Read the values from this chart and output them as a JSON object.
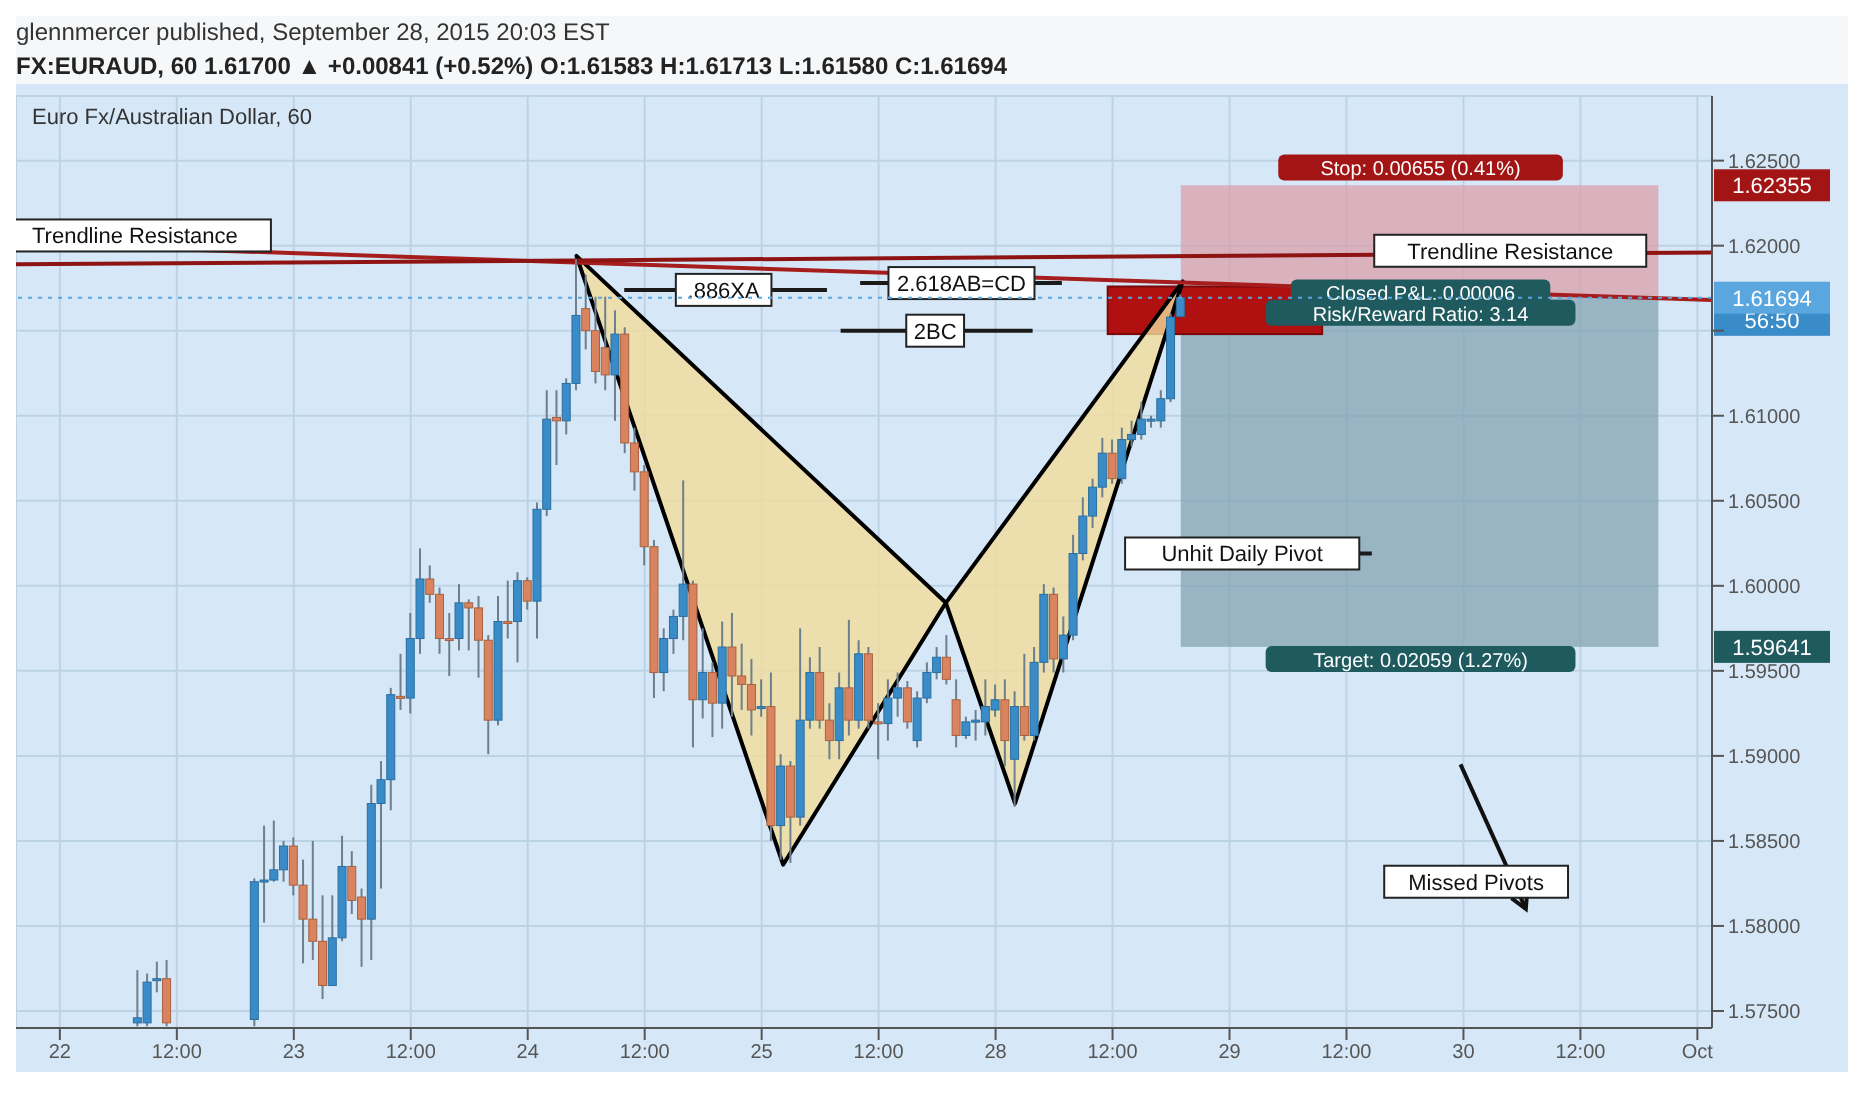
{
  "chart_data": {
    "type": "candlestick",
    "title": "FX:EURAUD, 60 1.61700 ▲ +0.00841 (+0.52%) O:1.61583 H:1.61713 L:1.61580 C:1.61694",
    "subtitle": "Euro Fx/Australian Dollar, 60",
    "categories": [
      null,
      null,
      null,
      null,
      "22",
      null,
      null,
      null,
      null,
      null,
      null,
      null,
      null,
      null,
      null,
      null,
      "12:00",
      null,
      null,
      null,
      null,
      null,
      null,
      null,
      null,
      null,
      null,
      null,
      "23",
      null,
      null,
      null,
      null,
      null,
      null,
      null,
      null,
      null,
      null,
      null,
      "12:00",
      null,
      null,
      null,
      null,
      null,
      null,
      null,
      null,
      null,
      null,
      null,
      "24",
      null,
      null,
      null,
      null,
      null,
      null,
      null,
      null,
      null,
      null,
      null,
      "12:00",
      null,
      null,
      null,
      null,
      null,
      null,
      null,
      null,
      null,
      null,
      null,
      "25",
      null,
      null,
      null,
      null,
      null,
      null,
      null,
      null,
      null,
      null,
      null,
      "12:00",
      null,
      null,
      null,
      null,
      null,
      null,
      null,
      null,
      null,
      null,
      null,
      "28",
      null,
      null,
      null,
      null,
      null,
      null,
      null,
      null,
      null,
      null,
      null,
      "12:00",
      null,
      null,
      null,
      null,
      null,
      null,
      null,
      null,
      null,
      null,
      null,
      "29",
      null,
      null,
      null,
      null,
      null,
      null,
      null,
      null,
      null,
      null,
      null,
      "12:00",
      null,
      null,
      null,
      null,
      null,
      null,
      null,
      null,
      null,
      null,
      null,
      "30",
      null,
      null,
      null,
      null,
      null,
      null,
      null,
      null,
      null,
      null,
      null,
      "12:00",
      null,
      null,
      null,
      null,
      null,
      null,
      null,
      null,
      null,
      null,
      null,
      "Oct",
      null
    ],
    "ohlc": [
      null,
      null,
      null,
      null,
      null,
      null,
      null,
      null,
      null,
      null,
      null,
      null,
      [
        1.5743,
        1.5774,
        1.5741,
        1.5746
      ],
      [
        1.5743,
        1.5772,
        1.5741,
        1.5767
      ],
      [
        1.5768,
        1.5779,
        1.5761,
        1.5769
      ],
      [
        1.5769,
        1.578,
        1.5741,
        1.5743
      ],
      null,
      null,
      null,
      null,
      null,
      null,
      null,
      null,
      [
        1.5745,
        1.5828,
        1.5741,
        1.5826
      ],
      [
        1.5826,
        1.5859,
        1.5802,
        1.5827
      ],
      [
        1.5827,
        1.5862,
        1.5826,
        1.5833
      ],
      [
        1.5833,
        1.585,
        1.5826,
        1.5847
      ],
      [
        1.5847,
        1.5852,
        1.5818,
        1.5824
      ],
      [
        1.5824,
        1.5839,
        1.5778,
        1.5804
      ],
      [
        1.5804,
        1.585,
        1.578,
        1.5791
      ],
      [
        1.5791,
        1.5818,
        1.5757,
        1.5765
      ],
      [
        1.5765,
        1.5818,
        1.5765,
        1.5793
      ],
      [
        1.5793,
        1.5853,
        1.5791,
        1.5835
      ],
      [
        1.5835,
        1.5844,
        1.5807,
        1.5815
      ],
      [
        1.5817,
        1.5822,
        1.5776,
        1.5804
      ],
      [
        1.5804,
        1.5883,
        1.578,
        1.5872
      ],
      [
        1.5872,
        1.5897,
        1.5822,
        1.5886
      ],
      [
        1.5886,
        1.594,
        1.5868,
        1.5936
      ],
      [
        1.5935,
        1.596,
        1.5927,
        1.5934
      ],
      [
        1.5934,
        1.5984,
        1.5925,
        1.5969
      ],
      [
        1.5969,
        1.6022,
        1.596,
        1.6004
      ],
      [
        1.6004,
        1.6012,
        1.599,
        1.5995
      ],
      [
        1.5995,
        1.5999,
        1.596,
        1.5969
      ],
      [
        1.5969,
        1.5984,
        1.5947,
        1.5968
      ],
      [
        1.5969,
        1.6001,
        1.5962,
        1.599
      ],
      [
        1.599,
        1.5992,
        1.5962,
        1.5987
      ],
      [
        1.5987,
        1.5994,
        1.5946,
        1.5968
      ],
      [
        1.5968,
        1.5971,
        1.5901,
        1.5921
      ],
      [
        1.5921,
        1.5994,
        1.5918,
        1.5979
      ],
      [
        1.5979,
        1.6003,
        1.5969,
        1.5978
      ],
      [
        1.5979,
        1.6008,
        1.5955,
        1.6003
      ],
      [
        1.6003,
        1.6005,
        1.5986,
        1.5991
      ],
      [
        1.5991,
        1.6049,
        1.5969,
        1.6045
      ],
      [
        1.6045,
        1.6115,
        1.6041,
        1.6098
      ],
      [
        1.6099,
        1.6115,
        1.6071,
        1.6097
      ],
      [
        1.6097,
        1.6122,
        1.6089,
        1.6119
      ],
      [
        1.6119,
        1.6192,
        1.6115,
        1.6159
      ],
      [
        1.6163,
        1.6183,
        1.6139,
        1.615
      ],
      [
        1.615,
        1.617,
        1.6119,
        1.6126
      ],
      [
        1.614,
        1.617,
        1.6115,
        1.6124
      ],
      [
        1.6124,
        1.6162,
        1.6097,
        1.6148
      ],
      [
        1.6148,
        1.6152,
        1.6078,
        1.6084
      ],
      [
        1.6084,
        1.6093,
        1.6056,
        1.6067
      ],
      [
        1.6067,
        1.6071,
        1.6012,
        1.6023
      ],
      [
        1.6023,
        1.6027,
        1.5934,
        1.5949
      ],
      [
        1.5949,
        1.5975,
        1.5938,
        1.5969
      ],
      [
        1.5969,
        1.5986,
        1.596,
        1.5982
      ],
      [
        1.5982,
        1.6062,
        1.5968,
        1.6001
      ],
      [
        1.6001,
        1.6003,
        1.5905,
        1.5933
      ],
      [
        1.5933,
        1.5975,
        1.5922,
        1.5949
      ],
      [
        1.5949,
        1.5955,
        1.5911,
        1.5931
      ],
      [
        1.5931,
        1.5979,
        1.5916,
        1.5964
      ],
      [
        1.5964,
        1.5984,
        1.5923,
        1.5947
      ],
      [
        1.5947,
        1.5966,
        1.5927,
        1.5942
      ],
      [
        1.5942,
        1.5957,
        1.5912,
        1.5927
      ],
      [
        1.5928,
        1.5945,
        1.5923,
        1.5929
      ],
      [
        1.5929,
        1.5949,
        1.585,
        1.5859
      ],
      [
        1.5859,
        1.5901,
        1.5839,
        1.5894
      ],
      [
        1.5894,
        1.5897,
        1.5837,
        1.5864
      ],
      [
        1.5864,
        1.5975,
        1.5859,
        1.5921
      ],
      [
        1.5921,
        1.5958,
        1.5916,
        1.5949
      ],
      [
        1.5949,
        1.5964,
        1.5916,
        1.5921
      ],
      [
        1.5921,
        1.5931,
        1.5898,
        1.5909
      ],
      [
        1.5909,
        1.5949,
        1.5898,
        1.594
      ],
      [
        1.594,
        1.598,
        1.5912,
        1.5921
      ],
      [
        1.5921,
        1.5968,
        1.5916,
        1.596
      ],
      [
        1.596,
        1.5964,
        1.5916,
        1.5921
      ],
      [
        1.592,
        1.5931,
        1.5898,
        1.5919
      ],
      [
        1.5919,
        1.5945,
        1.5909,
        1.5934
      ],
      [
        1.5934,
        1.5949,
        1.5923,
        1.594
      ],
      [
        1.594,
        1.5944,
        1.5916,
        1.592
      ],
      [
        1.5909,
        1.5938,
        1.5905,
        1.5934
      ],
      [
        1.5934,
        1.5955,
        1.5931,
        1.5949
      ],
      [
        1.5949,
        1.5964,
        1.5945,
        1.5958
      ],
      [
        1.5958,
        1.5971,
        1.5942,
        1.5945
      ],
      [
        1.5933,
        1.5945,
        1.5905,
        1.5912
      ],
      [
        1.5912,
        1.5923,
        1.591,
        1.592
      ],
      [
        1.592,
        1.5927,
        1.5909,
        1.5921
      ],
      [
        1.592,
        1.5945,
        1.5912,
        1.5929
      ],
      [
        1.5927,
        1.5942,
        1.5923,
        1.5933
      ],
      [
        1.5933,
        1.5945,
        1.5894,
        1.5909
      ],
      [
        1.5898,
        1.5938,
        1.587,
        1.5929
      ],
      [
        1.5929,
        1.596,
        1.5909,
        1.5912
      ],
      [
        1.5912,
        1.5964,
        1.5909,
        1.5955
      ],
      [
        1.5955,
        1.6001,
        1.5949,
        1.5995
      ],
      [
        1.5995,
        1.5999,
        1.5949,
        1.5957
      ],
      [
        1.5957,
        1.5982,
        1.5949,
        1.5971
      ],
      [
        1.5971,
        1.603,
        1.5968,
        1.6019
      ],
      [
        1.6019,
        1.6052,
        1.6015,
        1.6041
      ],
      [
        1.6041,
        1.6063,
        1.6034,
        1.6058
      ],
      [
        1.6058,
        1.6087,
        1.6052,
        1.6078
      ],
      [
        1.6078,
        1.6086,
        1.606,
        1.6063
      ],
      [
        1.6063,
        1.6093,
        1.606,
        1.6086
      ],
      [
        1.6086,
        1.6097,
        1.6082,
        1.6089
      ],
      [
        1.6089,
        1.6108,
        1.6086,
        1.6098
      ],
      [
        1.6097,
        1.61,
        1.6093,
        1.6098
      ],
      [
        1.6097,
        1.6115,
        1.6093,
        1.611
      ],
      [
        1.611,
        1.616,
        1.6108,
        1.6158
      ],
      [
        1.61583,
        1.61713,
        1.6158,
        1.61694
      ],
      null,
      null,
      null,
      null,
      null,
      null,
      null,
      null,
      null,
      null,
      null,
      null,
      null,
      null,
      null,
      null,
      null,
      null,
      null,
      null,
      null,
      null,
      null,
      null,
      null,
      null,
      null,
      null,
      null,
      null,
      null,
      null,
      null,
      null,
      null,
      null,
      null,
      null,
      null,
      null,
      null,
      null,
      null,
      null,
      null,
      null,
      null,
      null,
      null,
      null,
      null,
      null,
      null,
      null
    ],
    "ref_lines": [
      {
        "axis": "y",
        "value": 1.61694,
        "label": "1.61694",
        "color": "#5aa7e0",
        "line_style": "dotted"
      }
    ],
    "annotations": [
      "glennmercer published, September 28, 2015 20:03 EST",
      "Trendline Resistance",
      "Trendline Resistance",
      ".886XA",
      "2.618AB=CD",
      "2BC",
      "Unhit Daily Pivot",
      "Stop: 0.00655 (0.41%)",
      "Closed P&L: 0.00006",
      "Risk/Reward Ratio: 3.14",
      "Target: 0.02059 (1.27%)",
      "Missed Pivots",
      "1.62355",
      "56:50",
      "1.59641"
    ],
    "ylim": [
      1.574,
      1.6288
    ],
    "yticks": [
      {
        "value": 1.575,
        "label": "1.57500"
      },
      {
        "value": 1.58,
        "label": "1.58000"
      },
      {
        "value": 1.585,
        "label": "1.58500"
      },
      {
        "value": 1.59,
        "label": "1.59000"
      },
      {
        "value": 1.595,
        "label": "1.59500"
      },
      {
        "value": 1.6,
        "label": "1.60000"
      },
      {
        "value": 1.605,
        "label": "1.60500"
      },
      {
        "value": 1.61,
        "label": "1.61000"
      },
      {
        "value": 1.615,
        "label": null
      },
      {
        "value": 1.62,
        "label": "1.62000"
      },
      {
        "value": 1.625,
        "label": "1.62500"
      }
    ],
    "grid": true
  }
}
